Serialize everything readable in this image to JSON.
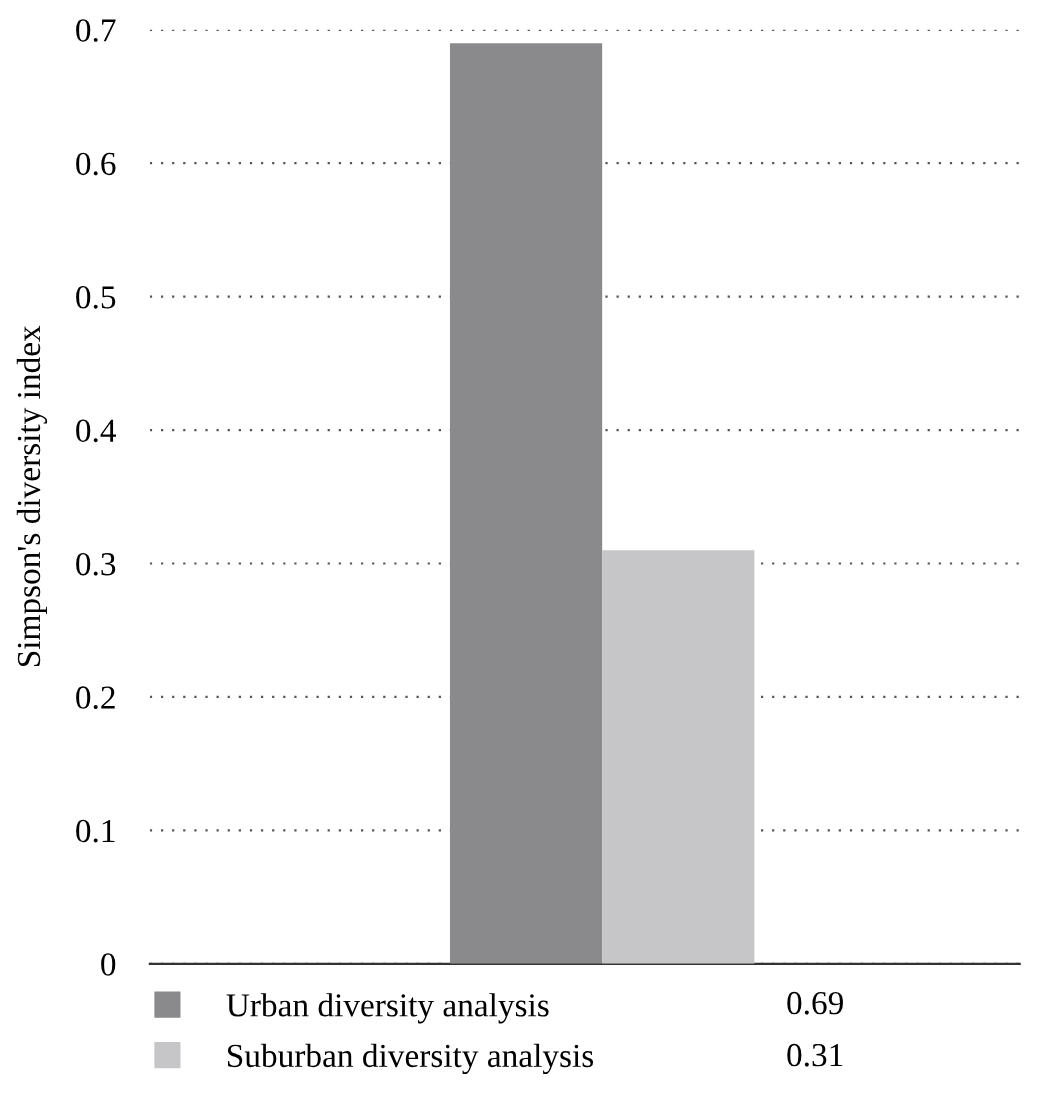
{
  "chart_data": {
    "type": "bar",
    "ylabel": "Simpson's diversity index",
    "categories": [
      null
    ],
    "series": [
      {
        "name": "Urban diversity analysis",
        "color": "#8a8a8c",
        "values": [
          0.69
        ]
      },
      {
        "name": "Suburban diversity analysis",
        "color": "#c6c6c8",
        "values": [
          0.31
        ]
      }
    ],
    "ylim": [
      0,
      0.7
    ],
    "yticks": [
      0,
      0.1,
      0.2,
      0.3,
      0.4,
      0.5,
      0.6,
      0.7
    ],
    "grid": "y",
    "legend": "bottom",
    "annotations": [
      "0.69",
      "0.31"
    ],
    "tick_labels": "y"
  }
}
